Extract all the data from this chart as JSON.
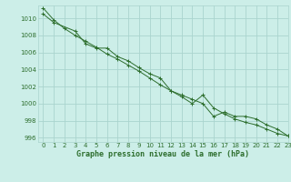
{
  "title": "Graphe pression niveau de la mer (hPa)",
  "background_color": "#cceee8",
  "grid_color": "#aad4ce",
  "line_color": "#2d6e2d",
  "xlim": [
    -0.5,
    23
  ],
  "ylim": [
    995.5,
    1011.5
  ],
  "yticks": [
    996,
    998,
    1000,
    1002,
    1004,
    1006,
    1008,
    1010
  ],
  "xticks": [
    0,
    1,
    2,
    3,
    4,
    5,
    6,
    7,
    8,
    9,
    10,
    11,
    12,
    13,
    14,
    15,
    16,
    17,
    18,
    19,
    20,
    21,
    22,
    23
  ],
  "series1_x": [
    0,
    1,
    3,
    4,
    5,
    6,
    7,
    8,
    9,
    10,
    11,
    12,
    13,
    14,
    15,
    16,
    17,
    18,
    19,
    20,
    21,
    22,
    23
  ],
  "series1_y": [
    1010.5,
    1009.5,
    1008.5,
    1007.0,
    1006.5,
    1006.5,
    1005.5,
    1005.0,
    1004.2,
    1003.5,
    1003.0,
    1001.5,
    1001.0,
    1000.5,
    1000.0,
    998.5,
    999.0,
    998.5,
    998.5,
    998.2,
    997.5,
    997.0,
    996.2
  ],
  "series2_x": [
    0,
    1,
    2,
    3,
    4,
    5,
    6,
    7,
    8,
    9,
    10,
    11,
    12,
    13,
    14,
    15,
    16,
    17,
    18,
    19,
    20,
    21,
    22,
    23
  ],
  "series2_y": [
    1011.2,
    1009.8,
    1008.8,
    1008.0,
    1007.3,
    1006.6,
    1005.8,
    1005.2,
    1004.5,
    1003.8,
    1003.0,
    1002.2,
    1001.5,
    1000.8,
    1000.0,
    1001.0,
    999.5,
    998.8,
    998.2,
    997.8,
    997.5,
    997.0,
    996.5,
    996.2
  ],
  "tick_fontsize": 5.0,
  "label_fontsize": 6.0
}
